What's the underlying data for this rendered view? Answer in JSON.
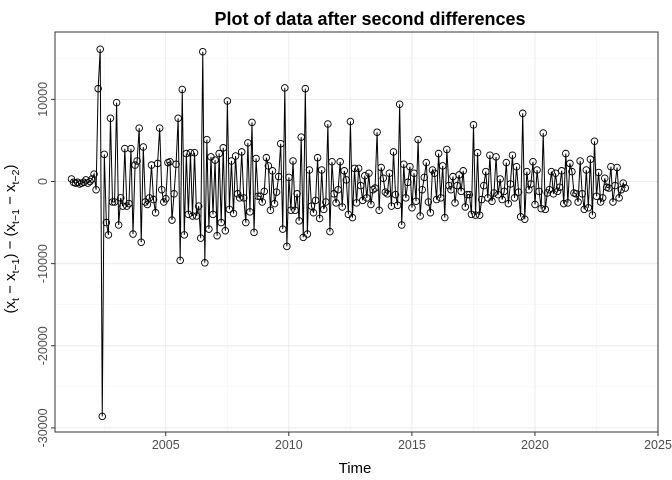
{
  "chart_data": {
    "type": "line",
    "title": "Plot of data after second differences",
    "xlabel": "Time",
    "ylabel": "(x_t − x_t−1) − (x_t−1 − x_t−2)",
    "ylabel_parts": [
      "(x",
      "t",
      " − x",
      "t−1",
      ") − (x",
      "t−1",
      " − x",
      "t−2",
      ")"
    ],
    "xlim": [
      2000.5,
      2025.0
    ],
    "ylim": [
      -30500,
      18200
    ],
    "x_ticks": [
      2005,
      2010,
      2015,
      2020,
      2025
    ],
    "x_tick_labels": [
      "2005",
      "2010",
      "2015",
      "2020",
      "2025"
    ],
    "y_ticks": [
      -30000,
      -20000,
      -10000,
      0,
      10000
    ],
    "y_tick_labels": [
      "-30000",
      "-20000",
      "-10000",
      "0",
      "10000"
    ],
    "grid": true,
    "markers": "open circles",
    "series": [
      {
        "start": 2001.17,
        "step": 0.0833333,
        "values": [
          300,
          -100,
          -200,
          -100,
          -300,
          -200,
          -100,
          200,
          -200,
          0,
          300,
          900,
          -1000,
          11300,
          16100,
          -28600,
          3300,
          -5000,
          -6500,
          7700,
          -2500,
          -2500,
          9600,
          -5300,
          -2000,
          -3000,
          4000,
          -3000,
          -2700,
          4000,
          -6400,
          2000,
          2500,
          6500,
          -7400,
          4200,
          -2500,
          -2800,
          -2000,
          2000,
          -2200,
          -3800,
          2200,
          6500,
          -1000,
          -2500,
          -2100,
          2300,
          2400,
          -4700,
          -1500,
          2100,
          7700,
          -9600,
          11200,
          -6500,
          3400,
          -4000,
          3500,
          -4200,
          3500,
          -4200,
          -3000,
          -6900,
          15800,
          -9900,
          5100,
          -5800,
          3000,
          -4000,
          2600,
          -6600,
          3400,
          -5000,
          4100,
          -6000,
          9800,
          -3400,
          2500,
          -3900,
          3100,
          -1500,
          -2000,
          3600,
          -2000,
          -5000,
          4700,
          -3700,
          7200,
          -6200,
          2800,
          -1800,
          -1800,
          -2500,
          -1200,
          2900,
          1900,
          -3500,
          1300,
          -2700,
          -1300,
          600,
          4600,
          -5800,
          11400,
          -7900,
          500,
          -3500,
          2500,
          -3500,
          -1500,
          -4800,
          5400,
          -6800,
          11300,
          -6400,
          1400,
          -3000,
          -3800,
          -2300,
          2900,
          -4500,
          1400,
          -3400,
          -2500,
          7000,
          -6100,
          2400,
          -1500,
          -2600,
          -1000,
          2400,
          -3100,
          1300,
          200,
          -4000,
          7300,
          -4400,
          1600,
          -2600,
          1600,
          -500,
          -2300,
          700,
          -2000,
          1000,
          -2800,
          -1000,
          -800,
          6000,
          -3500,
          1700,
          400,
          -1300,
          -1500,
          1000,
          -3000,
          3600,
          -1600,
          -2900,
          9400,
          -5300,
          2100,
          -2000,
          -100,
          1800,
          -3200,
          1000,
          -2400,
          5100,
          -4200,
          -1000,
          500,
          2300,
          -2500,
          -3800,
          1400,
          1000,
          -2200,
          3400,
          -2000,
          1900,
          -4400,
          3900,
          -500,
          -1000,
          600,
          -2600,
          -500,
          800,
          -1200,
          1300,
          -3100,
          -1600,
          -1600,
          -4000,
          6900,
          -4100,
          3500,
          -4100,
          -2200,
          -500,
          1200,
          -2000,
          3200,
          -2400,
          -1400,
          3000,
          -1600,
          300,
          -2200,
          -1200,
          2300,
          -2700,
          -300,
          3200,
          -2000,
          1800,
          -1300,
          -4300,
          8300,
          -4600,
          1200,
          -1000,
          -300,
          2400,
          -2800,
          1400,
          -1200,
          -3300,
          5900,
          -3400,
          -1400,
          -1000,
          1200,
          -1500,
          1000,
          -1200,
          -700,
          1300,
          -2700,
          3400,
          -2600,
          2200,
          1200,
          -1400,
          -1500,
          -2500,
          2500,
          -1500,
          -3400,
          1400,
          -3200,
          2700,
          -4100,
          4900,
          -1800,
          1100,
          -2500,
          -2000,
          400,
          -700,
          -800,
          1800,
          -2500,
          -500,
          1700,
          -2000,
          -1000,
          -200,
          -800
        ]
      }
    ]
  }
}
